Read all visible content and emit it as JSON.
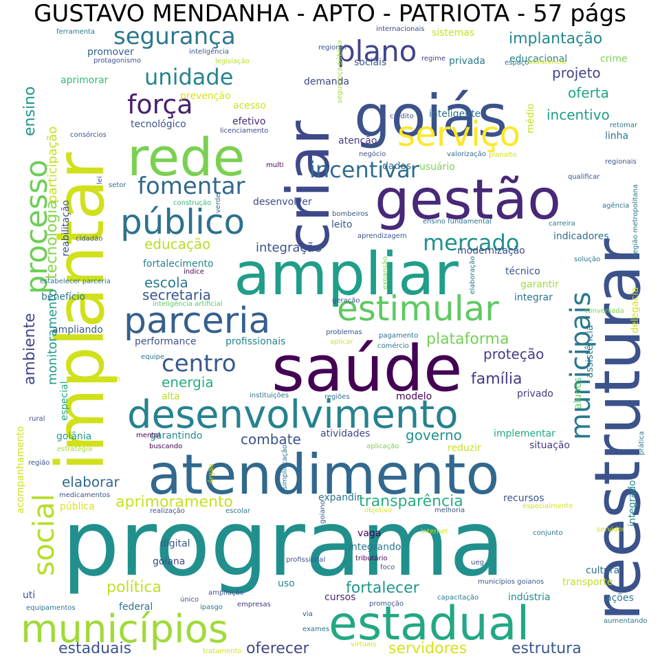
{
  "title": "GUSTAVO MENDANHA - APTO - PATRIOTA - 57 págs",
  "words": [
    {
      "t": "programa",
      "c": "#21908d"
    },
    {
      "t": "implantar",
      "c": "#d0e11c"
    },
    {
      "t": "reestruturar",
      "c": "#3b528b"
    },
    {
      "t": "saúde",
      "c": "#440154"
    },
    {
      "t": "atendimento",
      "c": "#31688e"
    },
    {
      "t": "goiás",
      "c": "#3b528b"
    },
    {
      "t": "ampliar",
      "c": "#1f9e89"
    },
    {
      "t": "criar",
      "c": "#3e4989"
    },
    {
      "t": "gestão",
      "c": "#482878"
    },
    {
      "t": "rede",
      "c": "#7ad151"
    },
    {
      "t": "desenvolvimento",
      "c": "#26828e"
    },
    {
      "t": "estadual",
      "c": "#22a884"
    },
    {
      "t": "municípios",
      "c": "#a0da39"
    },
    {
      "t": "parceria",
      "c": "#355f8d"
    },
    {
      "t": "público",
      "c": "#2c728e"
    },
    {
      "t": "estimular",
      "c": "#5ec962"
    },
    {
      "t": "serviço",
      "c": "#fde725"
    },
    {
      "t": "processo",
      "c": "#6ece58"
    },
    {
      "t": "social",
      "c": "#b5de2b"
    },
    {
      "t": "municipais",
      "c": "#2a788e"
    },
    {
      "t": "segurança",
      "c": "#2a788e"
    },
    {
      "t": "plano",
      "c": "#414487"
    },
    {
      "t": "unidade",
      "c": "#25848e"
    },
    {
      "t": "força",
      "c": "#481f70"
    },
    {
      "t": "centro",
      "c": "#38598c"
    },
    {
      "t": "fomentar",
      "c": "#31688e"
    },
    {
      "t": "incentivar",
      "c": "#2e6e8e"
    },
    {
      "t": "mercado",
      "c": "#21918c"
    },
    {
      "t": "tecnologia",
      "c": "#84d44b"
    },
    {
      "t": "ensino",
      "c": "#1f968b"
    },
    {
      "t": "participação",
      "c": "#c2df23"
    },
    {
      "t": "ambiente",
      "c": "#3f4788"
    },
    {
      "t": "monitoramento",
      "c": "#1f9a8a"
    },
    {
      "t": "implantação",
      "c": "#23898e"
    },
    {
      "t": "projeto",
      "c": "#414487"
    },
    {
      "t": "oferta",
      "c": "#20a386"
    },
    {
      "t": "incentivo",
      "c": "#1f9e89"
    },
    {
      "t": "educação",
      "c": "#b8de29"
    },
    {
      "t": "integração",
      "c": "#3b528b"
    },
    {
      "t": "escola",
      "c": "#2a788e"
    },
    {
      "t": "secretaria",
      "c": "#39568c"
    },
    {
      "t": "plataforma",
      "c": "#73d056"
    },
    {
      "t": "proteção",
      "c": "#433e85"
    },
    {
      "t": "família",
      "c": "#443983"
    },
    {
      "t": "energia",
      "c": "#27ad81"
    },
    {
      "t": "combate",
      "c": "#3b528b"
    },
    {
      "t": "governo",
      "c": "#20928c"
    },
    {
      "t": "elaborar",
      "c": "#31688e"
    },
    {
      "t": "aprimoramento",
      "c": "#c8e020"
    },
    {
      "t": "transparência",
      "c": "#28ae80"
    },
    {
      "t": "política",
      "c": "#c0df25"
    },
    {
      "t": "fortalecer",
      "c": "#1f978b"
    },
    {
      "t": "estaduais",
      "c": "#3b528b"
    },
    {
      "t": "oferecer",
      "c": "#3f4788"
    },
    {
      "t": "servidores",
      "c": "#d5e21a"
    },
    {
      "t": "estrutura",
      "c": "#38598c"
    },
    {
      "t": "educacional",
      "c": "#26828e"
    },
    {
      "t": "crime",
      "c": "#7fd34e"
    },
    {
      "t": "inteligente",
      "c": "#2d718e"
    },
    {
      "t": "médio",
      "c": "#c2df23"
    },
    {
      "t": "sociais",
      "c": "#39568c"
    },
    {
      "t": "demanda",
      "c": "#3f4788"
    },
    {
      "t": "promover",
      "c": "#355f8d"
    },
    {
      "t": "privada",
      "c": "#2a788e"
    },
    {
      "t": "sistemas",
      "c": "#c8e020"
    },
    {
      "t": "aprimorar",
      "c": "#35b779"
    },
    {
      "t": "prevenção",
      "c": "#d8e219"
    },
    {
      "t": "acesso",
      "c": "#cde11d"
    },
    {
      "t": "efetivo",
      "c": "#482878"
    },
    {
      "t": "tecnológico",
      "c": "#3b528b"
    },
    {
      "t": "atenção",
      "c": "#453781"
    },
    {
      "t": "dados",
      "c": "#31688e"
    },
    {
      "t": "usuário",
      "c": "#7ad151"
    },
    {
      "t": "linha",
      "c": "#2a788e"
    },
    {
      "t": "desenvolver",
      "c": "#3e4989"
    },
    {
      "t": "leito",
      "c": "#39568c"
    },
    {
      "t": "indicadores",
      "c": "#2e6e8e"
    },
    {
      "t": "modernização",
      "c": "#3e4989"
    },
    {
      "t": "reabilitação",
      "c": "#3b528b"
    },
    {
      "t": "fortalecimento",
      "c": "#26828e"
    },
    {
      "t": "técnico",
      "c": "#3b528b"
    },
    {
      "t": "garantir",
      "c": "#9fda3a"
    },
    {
      "t": "integrar",
      "c": "#2c728e"
    },
    {
      "t": "delegacia",
      "c": "#d2e21b"
    },
    {
      "t": "benefício",
      "c": "#2a788e"
    },
    {
      "t": "ampliando",
      "c": "#38598c"
    },
    {
      "t": "performance",
      "c": "#3b528b"
    },
    {
      "t": "profissionais",
      "c": "#25848e"
    },
    {
      "t": "alta",
      "c": "#b5de2b"
    },
    {
      "t": "privado",
      "c": "#453781"
    },
    {
      "t": "modelo",
      "c": "#440154"
    },
    {
      "t": "alunos",
      "c": "#5ec962"
    },
    {
      "t": "assistência",
      "c": "#2a788e"
    },
    {
      "t": "especial",
      "c": "#22a884"
    },
    {
      "t": "atividades",
      "c": "#414487"
    },
    {
      "t": "garantindo",
      "c": "#24878e"
    },
    {
      "t": "implementar",
      "c": "#22a884"
    },
    {
      "t": "goiânia",
      "c": "#1f9e89"
    },
    {
      "t": "reduzir",
      "c": "#c8e020"
    },
    {
      "t": "situação",
      "c": "#453781"
    },
    {
      "t": "estratégia",
      "c": "#a0da39"
    },
    {
      "t": "expandir",
      "c": "#2c728e"
    },
    {
      "t": "recursos",
      "c": "#39568c"
    },
    {
      "t": "integrado",
      "c": "#23898e"
    },
    {
      "t": "pública",
      "c": "#d5e21a"
    },
    {
      "t": "acompanhamento",
      "c": "#cde11d"
    },
    {
      "t": "vaga",
      "c": "#440154"
    },
    {
      "t": "integrando",
      "c": "#2a788e"
    },
    {
      "t": "goiana",
      "c": "#3f4788"
    },
    {
      "t": "digital",
      "c": "#39568c"
    },
    {
      "t": "cultura",
      "c": "#2e6e8e"
    },
    {
      "t": "uso",
      "c": "#25848e"
    },
    {
      "t": "cursos",
      "c": "#482878"
    },
    {
      "t": "indústria",
      "c": "#24878e"
    },
    {
      "t": "transporte",
      "c": "#bddf26"
    },
    {
      "t": "ações",
      "c": "#2a788e"
    },
    {
      "t": "uti",
      "c": "#3b528b"
    },
    {
      "t": "federal",
      "c": "#2c728e"
    },
    {
      "t": "empresas",
      "c": "#453781"
    },
    {
      "t": "internacionais",
      "c": "#3e4989"
    },
    {
      "t": "regional",
      "c": "#3b528b"
    },
    {
      "t": "regime",
      "c": "#433e85"
    },
    {
      "t": "espaço",
      "c": "#2c728e"
    },
    {
      "t": "assistencia",
      "c": "#c8e020"
    },
    {
      "t": "inteligência",
      "c": "#39568c"
    },
    {
      "t": "legislação",
      "c": "#b5de2b"
    },
    {
      "t": "protagonismo",
      "c": "#3b528b"
    },
    {
      "t": "ferramenta",
      "c": "#2a788e"
    },
    {
      "t": "segurança pública",
      "c": "#a0da39"
    },
    {
      "t": "crédito",
      "c": "#3b528b"
    },
    {
      "t": "retomar",
      "c": "#2a788e"
    },
    {
      "t": "consórcios",
      "c": "#3b528b"
    },
    {
      "t": "licenciamento",
      "c": "#3e4989"
    },
    {
      "t": "planalto",
      "c": "#cde11d"
    },
    {
      "t": "negócio",
      "c": "#3b528b"
    },
    {
      "t": "valorização",
      "c": "#2e6e8e"
    },
    {
      "t": "regionais",
      "c": "#3b528b"
    },
    {
      "t": "qualificar",
      "c": "#3b528b"
    },
    {
      "t": "região metropolitana",
      "c": "#2a788e"
    },
    {
      "t": "multi",
      "c": "#440154"
    },
    {
      "t": "setor",
      "c": "#2c728e"
    },
    {
      "t": "lei",
      "c": "#3b528b"
    },
    {
      "t": "construção",
      "c": "#35b779"
    },
    {
      "t": "verde",
      "c": "#2e6e8e"
    },
    {
      "t": "bombeiros",
      "c": "#3b528b"
    },
    {
      "t": "ensino fundamental",
      "c": "#2c728e"
    },
    {
      "t": "agência",
      "c": "#2c728e"
    },
    {
      "t": "carreira",
      "c": "#2a788e"
    },
    {
      "t": "cidadão",
      "c": "#3b528b"
    },
    {
      "t": "aprendizagem",
      "c": "#3b528b"
    },
    {
      "t": "expansão",
      "c": "#7ad151"
    },
    {
      "t": "solução",
      "c": "#2a788e"
    },
    {
      "t": "elaboração",
      "c": "#2c728e"
    },
    {
      "t": "estabelecer parceria",
      "c": "#2c728e"
    },
    {
      "t": "índice",
      "c": "#440154"
    },
    {
      "t": "inteligência artificial",
      "c": "#5ec962"
    },
    {
      "t": "geração",
      "c": "#3b528b"
    },
    {
      "t": "conveniada",
      "c": "#7ad151"
    },
    {
      "t": "problemas",
      "c": "#3b528b"
    },
    {
      "t": "pagamento",
      "c": "#2c728e"
    },
    {
      "t": "aplicar",
      "c": "#d2e21b"
    },
    {
      "t": "comércio",
      "c": "#2a788e"
    },
    {
      "t": "equipe",
      "c": "#2c728e"
    },
    {
      "t": "procedimento",
      "c": "#d2e21b"
    },
    {
      "t": "instituições",
      "c": "#2c728e"
    },
    {
      "t": "regiões",
      "c": "#2c728e"
    },
    {
      "t": "rural",
      "c": "#3b528b"
    },
    {
      "t": "mental",
      "c": "#440154"
    },
    {
      "t": "prática",
      "c": "#2a788e"
    },
    {
      "t": "região",
      "c": "#3b528b"
    },
    {
      "t": "buscando",
      "c": "#440154"
    },
    {
      "t": "aplicação",
      "c": "#7ad151"
    },
    {
      "t": "simplificação",
      "c": "#2c728e"
    },
    {
      "t": "órgão",
      "c": "#d2e21b"
    },
    {
      "t": "medicamentos",
      "c": "#3b528b"
    },
    {
      "t": "realização",
      "c": "#3b528b"
    },
    {
      "t": "escolar",
      "c": "#2c728e"
    },
    {
      "t": "goiano",
      "c": "#3b528b"
    },
    {
      "t": "objetivo",
      "c": "#d2e21b"
    },
    {
      "t": "melhoria",
      "c": "#3b528b"
    },
    {
      "t": "especialmente",
      "c": "#d2e21b"
    },
    {
      "t": "servidor",
      "c": "#d2e21b"
    },
    {
      "t": "internet",
      "c": "#d2e21b"
    },
    {
      "t": "conjunto",
      "c": "#2c728e"
    },
    {
      "t": "profissional",
      "c": "#3b528b"
    },
    {
      "t": "tributário",
      "c": "#440154"
    },
    {
      "t": "foco",
      "c": "#3b528b"
    },
    {
      "t": "ueg",
      "c": "#3b528b"
    },
    {
      "t": "municípios goianos",
      "c": "#3b528b"
    },
    {
      "t": "equipamentos",
      "c": "#2c728e"
    },
    {
      "t": "único",
      "c": "#3b528b"
    },
    {
      "t": "ipasgo",
      "c": "#2a788e"
    },
    {
      "t": "ampliação",
      "c": "#3b528b"
    },
    {
      "t": "promoção",
      "c": "#3b528b"
    },
    {
      "t": "capacitação",
      "c": "#2a788e"
    },
    {
      "t": "aumentando",
      "c": "#2a788e"
    },
    {
      "t": "via",
      "c": "#3b528b"
    },
    {
      "t": "exames",
      "c": "#2c728e"
    },
    {
      "t": "tratamento",
      "c": "#d2e21b"
    },
    {
      "t": "virtuais",
      "c": "#d2e21b"
    }
  ]
}
